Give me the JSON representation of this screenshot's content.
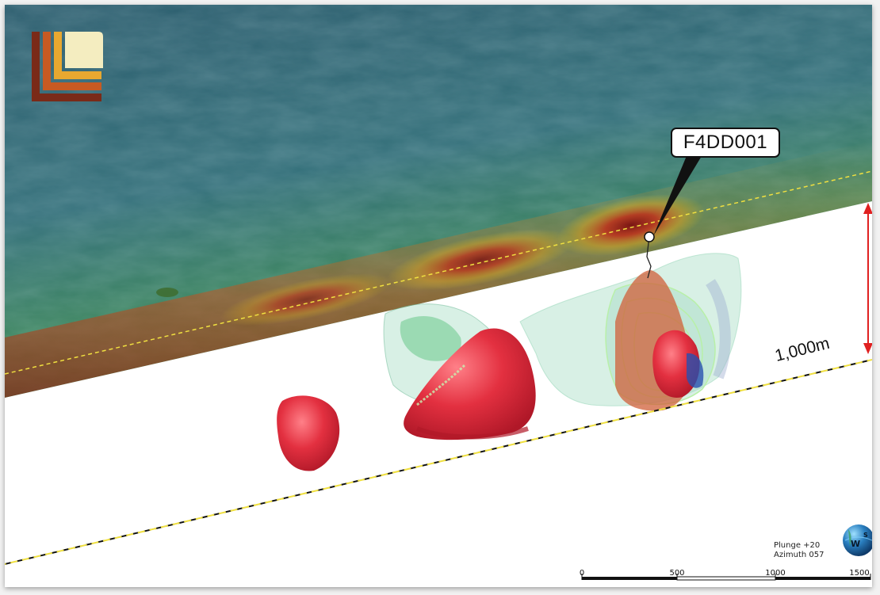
{
  "callout": {
    "label": "F4DD001"
  },
  "depth": {
    "label": "1,000m"
  },
  "orientation": {
    "plunge": "Plunge +20",
    "azimuth": "Azimuth 057"
  },
  "scale_bar": {
    "ticks": [
      "0",
      "500",
      "1000",
      "1500"
    ]
  },
  "compass": {
    "west": "W",
    "east": "S"
  },
  "colors": {
    "terrain_top": "#2f6f7a",
    "terrain_mid": "#3e8f4a",
    "anomaly_hot": "#b22a1a",
    "orebody": "#e0303a",
    "shell": "#8fd4b4",
    "depth_arrow": "#e02020",
    "logo_orange": "#e07a2a",
    "logo_cream": "#f4edc0"
  }
}
